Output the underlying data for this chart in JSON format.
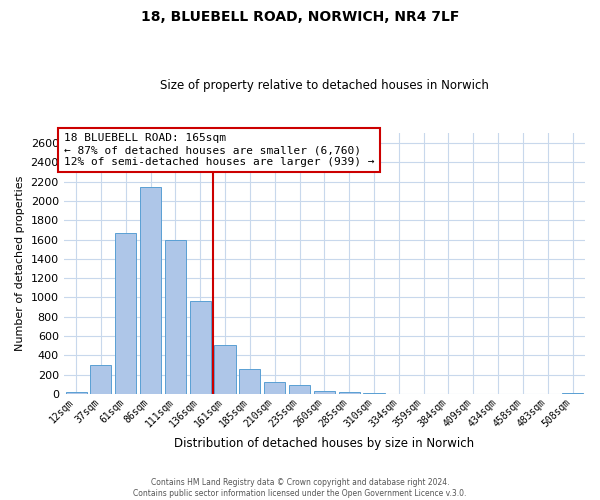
{
  "title": "18, BLUEBELL ROAD, NORWICH, NR4 7LF",
  "subtitle": "Size of property relative to detached houses in Norwich",
  "xlabel": "Distribution of detached houses by size in Norwich",
  "ylabel": "Number of detached properties",
  "bar_labels": [
    "12sqm",
    "37sqm",
    "61sqm",
    "86sqm",
    "111sqm",
    "136sqm",
    "161sqm",
    "185sqm",
    "210sqm",
    "235sqm",
    "260sqm",
    "285sqm",
    "310sqm",
    "334sqm",
    "359sqm",
    "384sqm",
    "409sqm",
    "434sqm",
    "458sqm",
    "483sqm",
    "508sqm"
  ],
  "bar_values": [
    18,
    300,
    1670,
    2140,
    1600,
    960,
    510,
    255,
    125,
    95,
    35,
    18,
    8,
    4,
    3,
    2,
    1,
    1,
    1,
    0,
    10
  ],
  "bar_color": "#aec6e8",
  "bar_edge_color": "#5a9fd4",
  "property_line_idx": 6,
  "property_line_color": "#cc0000",
  "annotation_title": "18 BLUEBELL ROAD: 165sqm",
  "annotation_line1": "← 87% of detached houses are smaller (6,760)",
  "annotation_line2": "12% of semi-detached houses are larger (939) →",
  "annotation_box_color": "#ffffff",
  "annotation_box_edge_color": "#cc0000",
  "ylim": [
    0,
    2700
  ],
  "yticks": [
    0,
    200,
    400,
    600,
    800,
    1000,
    1200,
    1400,
    1600,
    1800,
    2000,
    2200,
    2400,
    2600
  ],
  "footer_line1": "Contains HM Land Registry data © Crown copyright and database right 2024.",
  "footer_line2": "Contains public sector information licensed under the Open Government Licence v.3.0.",
  "bg_color": "#ffffff",
  "grid_color": "#c8d8ec"
}
